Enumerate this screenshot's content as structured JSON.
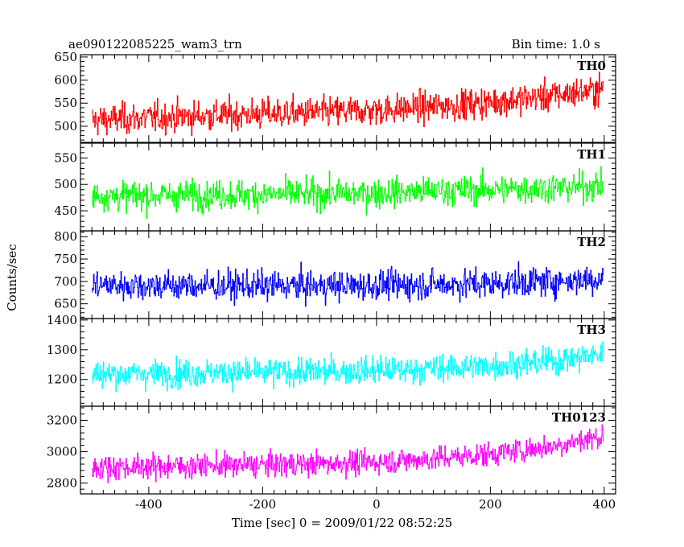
{
  "header": {
    "left_title": "ae090122085225_wam3_trn",
    "bin_time": "Bin time: 1.0 s"
  },
  "axes": {
    "ylabel": "Counts/sec",
    "xlabel": "Time [sec] 0 = 2009/01/22 08:52:25",
    "x_ticks": [
      "-400",
      "-200",
      "0",
      "200",
      "400"
    ]
  },
  "chart_data": [
    {
      "type": "line",
      "name": "TH0",
      "color": "#ff0000",
      "xlim": [
        -520,
        420
      ],
      "ylim": [
        465,
        655
      ],
      "y_ticks": [
        500,
        550,
        600,
        650
      ],
      "x": [
        -500,
        -400,
        -300,
        -200,
        -100,
        0,
        100,
        200,
        300,
        400
      ],
      "y": [
        513,
        518,
        523,
        527,
        530,
        535,
        542,
        552,
        565,
        580
      ],
      "noise": 30
    },
    {
      "type": "line",
      "name": "TH1",
      "color": "#00ff00",
      "xlim": [
        -520,
        420
      ],
      "ylim": [
        412,
        578
      ],
      "y_ticks": [
        450,
        500,
        550
      ],
      "x": [
        -500,
        -400,
        -300,
        -200,
        -100,
        0,
        100,
        200,
        300,
        400
      ],
      "y": [
        478,
        479,
        480,
        481,
        482,
        484,
        487,
        490,
        493,
        497
      ],
      "noise": 25
    },
    {
      "type": "line",
      "name": "TH2",
      "color": "#0000ff",
      "xlim": [
        -520,
        420
      ],
      "ylim": [
        617,
        813
      ],
      "y_ticks": [
        650,
        700,
        750,
        800
      ],
      "x": [
        -500,
        -400,
        -300,
        -200,
        -100,
        0,
        100,
        200,
        300,
        400
      ],
      "y": [
        692,
        691,
        690,
        690,
        690,
        691,
        693,
        695,
        700,
        706
      ],
      "noise": 30
    },
    {
      "type": "line",
      "name": "TH3",
      "color": "#00ffff",
      "xlim": [
        -520,
        420
      ],
      "ylim": [
        1110,
        1405
      ],
      "y_ticks": [
        1200,
        1300,
        1400
      ],
      "x": [
        -500,
        -400,
        -300,
        -200,
        -100,
        0,
        100,
        200,
        300,
        400
      ],
      "y": [
        1218,
        1220,
        1222,
        1224,
        1226,
        1230,
        1237,
        1246,
        1260,
        1285
      ],
      "noise": 42
    },
    {
      "type": "line",
      "name": "TH0123",
      "color": "#ff00ff",
      "xlim": [
        -520,
        420
      ],
      "ylim": [
        2730,
        3290
      ],
      "y_ticks": [
        2800,
        3000,
        3200
      ],
      "x": [
        -500,
        -400,
        -300,
        -200,
        -100,
        0,
        100,
        200,
        300,
        400
      ],
      "y": [
        2900,
        2905,
        2910,
        2915,
        2922,
        2935,
        2955,
        2985,
        3030,
        3100
      ],
      "noise": 70
    }
  ]
}
